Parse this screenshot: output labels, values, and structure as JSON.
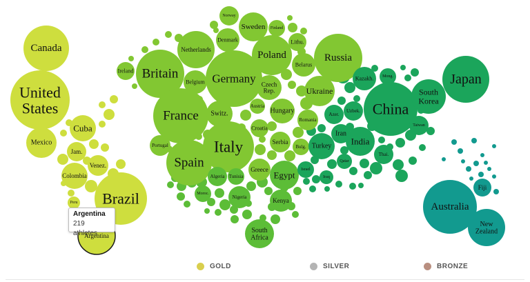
{
  "chart_data": {
    "type": "bubble-map",
    "labeled": [
      {
        "name": "Canada",
        "region": "americas"
      },
      {
        "name": "United States",
        "lines": [
          "United",
          "States"
        ],
        "region": "americas"
      },
      {
        "name": "Cuba",
        "region": "americas"
      },
      {
        "name": "Mexico",
        "region": "americas"
      },
      {
        "name": "Jam.",
        "region": "americas"
      },
      {
        "name": "Venez.",
        "region": "americas"
      },
      {
        "name": "Colombia",
        "region": "americas"
      },
      {
        "name": "Brazil",
        "region": "americas"
      },
      {
        "name": "Peru",
        "region": "americas"
      },
      {
        "name": "Argentina",
        "region": "americas"
      },
      {
        "name": "Norway",
        "region": "europe"
      },
      {
        "name": "Sweden",
        "region": "europe"
      },
      {
        "name": "Finland",
        "region": "europe"
      },
      {
        "name": "Denmark",
        "region": "europe"
      },
      {
        "name": "Netherlands",
        "region": "europe"
      },
      {
        "name": "Lithu.",
        "region": "europe"
      },
      {
        "name": "Poland",
        "region": "europe"
      },
      {
        "name": "Russia",
        "region": "europe"
      },
      {
        "name": "Belarus",
        "region": "europe"
      },
      {
        "name": "Ireland",
        "region": "europe"
      },
      {
        "name": "Britain",
        "region": "europe"
      },
      {
        "name": "Belgium",
        "region": "europe"
      },
      {
        "name": "Germany",
        "region": "europe"
      },
      {
        "name": "Czech Rep.",
        "lines": [
          "Czech",
          "Rep."
        ],
        "region": "europe"
      },
      {
        "name": "Ukraine",
        "region": "europe"
      },
      {
        "name": "Austria",
        "region": "europe"
      },
      {
        "name": "Hungary",
        "region": "europe"
      },
      {
        "name": "Romania",
        "region": "europe"
      },
      {
        "name": "France",
        "region": "europe"
      },
      {
        "name": "Switz.",
        "region": "europe"
      },
      {
        "name": "Croatia",
        "region": "europe"
      },
      {
        "name": "Italy",
        "region": "europe"
      },
      {
        "name": "Serbia",
        "region": "europe"
      },
      {
        "name": "Bulg.",
        "region": "europe"
      },
      {
        "name": "Portugal",
        "region": "europe"
      },
      {
        "name": "Spain",
        "region": "europe"
      },
      {
        "name": "Greece",
        "region": "europe"
      },
      {
        "name": "Algeria",
        "region": "africa"
      },
      {
        "name": "Tunisia",
        "region": "africa"
      },
      {
        "name": "Egypt",
        "region": "africa"
      },
      {
        "name": "Moroc.",
        "region": "africa"
      },
      {
        "name": "Nigeria",
        "region": "africa"
      },
      {
        "name": "Kenya",
        "region": "africa"
      },
      {
        "name": "South Africa",
        "lines": [
          "South",
          "Africa"
        ],
        "region": "africa"
      },
      {
        "name": "Kazakh.",
        "region": "asia"
      },
      {
        "name": "Mong.",
        "region": "asia"
      },
      {
        "name": "Japan",
        "region": "asia"
      },
      {
        "name": "China",
        "region": "asia"
      },
      {
        "name": "South Korea",
        "lines": [
          "South",
          "Korea"
        ],
        "region": "asia"
      },
      {
        "name": "Azer.",
        "region": "asia"
      },
      {
        "name": "Uzbek.",
        "region": "asia"
      },
      {
        "name": "Iran",
        "region": "asia"
      },
      {
        "name": "Taiwan",
        "region": "asia"
      },
      {
        "name": "Turkey",
        "region": "asia"
      },
      {
        "name": "India",
        "region": "asia"
      },
      {
        "name": "Israel",
        "region": "asia"
      },
      {
        "name": "Qatar",
        "region": "asia"
      },
      {
        "name": "Thai.",
        "region": "asia"
      },
      {
        "name": "Iraq",
        "region": "asia"
      },
      {
        "name": "Fiji",
        "region": "oceania"
      },
      {
        "name": "Australia",
        "region": "oceania"
      },
      {
        "name": "New Zealand",
        "lines": [
          "New",
          "Zealand"
        ],
        "region": "oceania"
      }
    ],
    "tooltip": {
      "name": "Argentina",
      "value_text": "219 athletes",
      "athletes": 219
    },
    "legend": [
      {
        "label": "GOLD",
        "color": "#d9cf4e"
      },
      {
        "label": "SILVER",
        "color": "#b4b4b4"
      },
      {
        "label": "BRONZE",
        "color": "#b98f80"
      }
    ],
    "region_colors": {
      "americas": "#cede3e",
      "europe": "#82c732",
      "africa": "#5cbd37",
      "asia": "#1ba55b",
      "oceania": "#129a8f"
    }
  }
}
